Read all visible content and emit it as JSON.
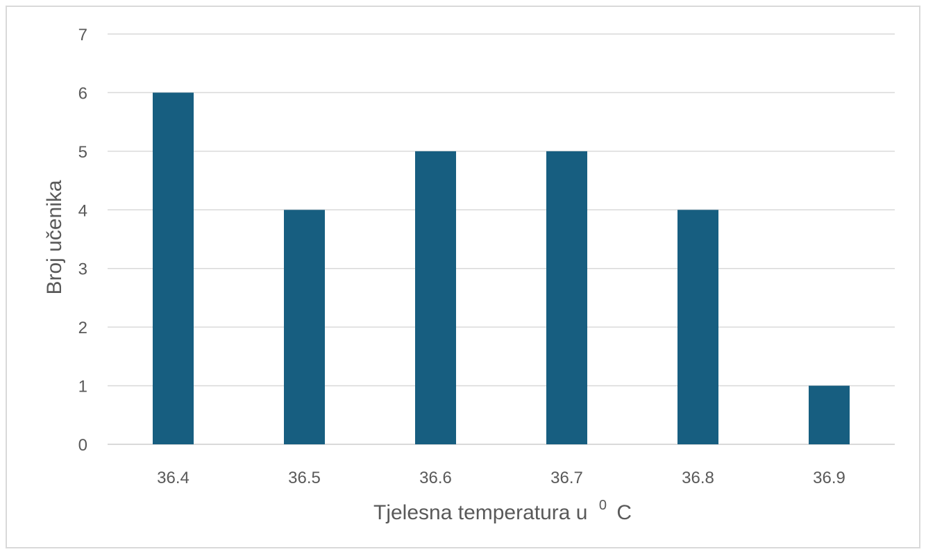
{
  "chart_data": {
    "type": "bar",
    "categories": [
      "36.4",
      "36.5",
      "36.6",
      "36.7",
      "36.8",
      "36.9"
    ],
    "values": [
      6,
      4,
      5,
      5,
      4,
      1
    ],
    "title": "",
    "xlabel": "Tjelesna temperatura u",
    "xlabel_sup": "0",
    "xlabel_unit": "C",
    "ylabel": "Broj učenika",
    "ylim": [
      0,
      7
    ],
    "yticks": [
      "0",
      "1",
      "2",
      "3",
      "4",
      "5",
      "6",
      "7"
    ],
    "grid": true,
    "legend": "none",
    "bar_color": "#175e80"
  }
}
